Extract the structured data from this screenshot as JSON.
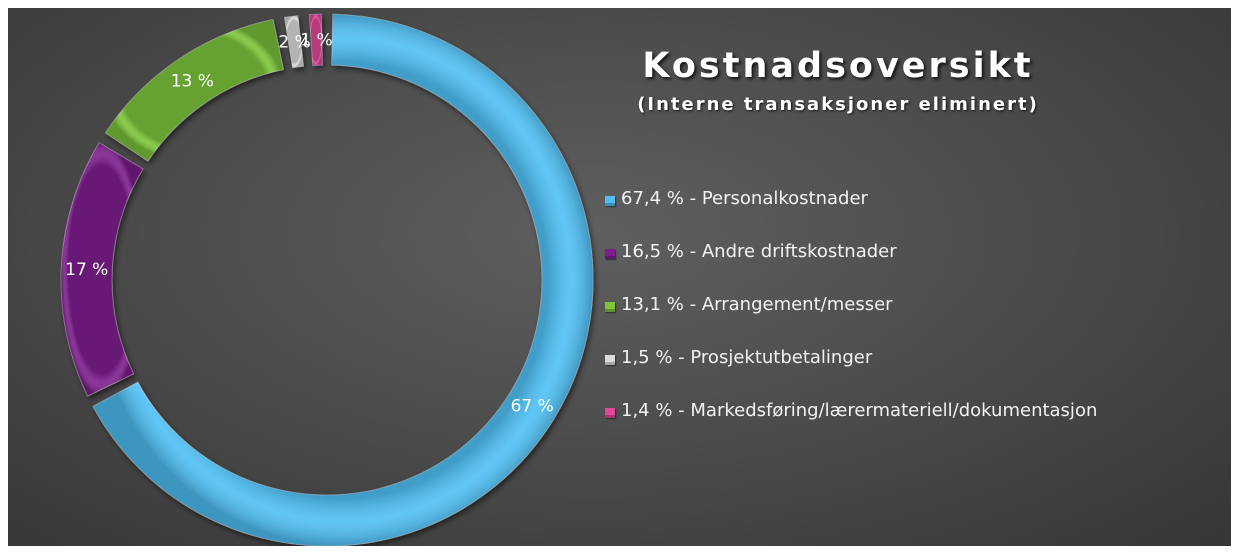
{
  "chart_data": {
    "type": "pie",
    "variant": "doughnut",
    "title": "Kostnadsoversikt",
    "subtitle": "(Interne transaksjoner eliminert)",
    "legend_position": "right",
    "slices": [
      {
        "name": "Personalkostnader",
        "value": 67.4,
        "data_label": "67 %",
        "legend_label": "67,4 % - Personalkostnader",
        "color": "#4fc0f5"
      },
      {
        "name": "Andre driftskostnader",
        "value": 16.5,
        "data_label": "17 %",
        "legend_label": "16,5 % - Andre driftskostnader",
        "color": "#7e1f8e"
      },
      {
        "name": "Arrangement/messer",
        "value": 13.1,
        "data_label": "13 %",
        "legend_label": "13,1 % - Arrangement/messer",
        "color": "#7cc63a"
      },
      {
        "name": "Prosjektutbetalinger",
        "value": 1.5,
        "data_label": "2 %",
        "legend_label": "1,5 % - Prosjektutbetalinger",
        "color": "#dcdcdc"
      },
      {
        "name": "Markedsføring/lærematerielll/dokumentasjon",
        "value": 1.4,
        "data_label": "1 %",
        "legend_label": "1,4 % - Markedsføring/lærermateriell/dokumentasjon",
        "color": "#e0479a"
      }
    ]
  }
}
